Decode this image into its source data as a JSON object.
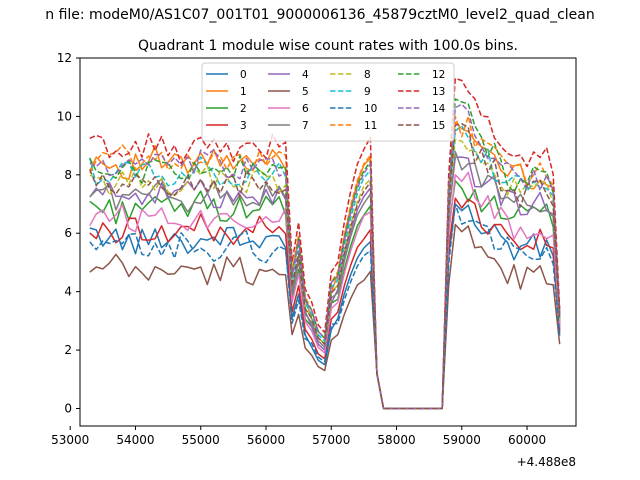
{
  "figure": {
    "suptitle": "n file: modeM0/AS1C07_001T01_9000006136_45879cztM0_level2_quad_clean",
    "title": "Quadrant 1 module wise count rates with 100.0s bins.",
    "x_offset_label": "+4.488e8"
  },
  "chart_data": {
    "type": "line",
    "title": "Quadrant 1 module wise count rates with 100.0s bins.",
    "xlabel": "",
    "ylabel": "",
    "x_offset": 448800000,
    "xlim": [
      53150,
      60750
    ],
    "ylim": [
      -0.6,
      12
    ],
    "xticks": [
      53000,
      54000,
      55000,
      56000,
      57000,
      58000,
      59000,
      60000
    ],
    "yticks": [
      0,
      2,
      4,
      6,
      8,
      10,
      12
    ],
    "grid": false,
    "legend_position": "upper center, 4 columns",
    "x": [
      53300,
      53400,
      53500,
      53600,
      53700,
      53800,
      53900,
      54000,
      54100,
      54200,
      54300,
      54400,
      54500,
      54600,
      54700,
      54800,
      54900,
      55000,
      55100,
      55200,
      55300,
      55400,
      55500,
      55600,
      55700,
      55800,
      55900,
      56000,
      56100,
      56200,
      56300,
      56400,
      56500,
      56600,
      56700,
      56800,
      56900,
      57000,
      57100,
      57200,
      57300,
      57400,
      57500,
      57600,
      57700,
      57800,
      57900,
      58000,
      58100,
      58200,
      58300,
      58400,
      58500,
      58600,
      58700,
      58800,
      58900,
      59000,
      59100,
      59200,
      59300,
      59400,
      59500,
      59600,
      59700,
      59800,
      59900,
      60000,
      60100,
      60200,
      60300,
      60400,
      60500
    ],
    "series": [
      {
        "name": "0",
        "color": "#1f77b4",
        "dash": "solid",
        "base": 5.8,
        "spike": 7.0,
        "dip": 1.5,
        "pre": 5.6,
        "end": 2.6
      },
      {
        "name": "1",
        "color": "#ff7f0e",
        "dash": "solid",
        "base": 8.4,
        "spike": 9.8,
        "dip": 2.2,
        "pre": 8.4,
        "end": 3.0
      },
      {
        "name": "2",
        "color": "#2ca02c",
        "dash": "solid",
        "base": 6.9,
        "spike": 7.8,
        "dip": 2.0,
        "pre": 6.8,
        "end": 2.8
      },
      {
        "name": "3",
        "color": "#d62728",
        "dash": "solid",
        "base": 6.1,
        "spike": 7.2,
        "dip": 1.7,
        "pre": 6.0,
        "end": 2.7
      },
      {
        "name": "4",
        "color": "#9467bd",
        "dash": "solid",
        "base": 7.4,
        "spike": 8.6,
        "dip": 2.0,
        "pre": 7.4,
        "end": 2.9
      },
      {
        "name": "5",
        "color": "#8c564b",
        "dash": "solid",
        "base": 4.7,
        "spike": 6.3,
        "dip": 1.3,
        "pre": 4.6,
        "end": 2.2
      },
      {
        "name": "6",
        "color": "#e377c2",
        "dash": "solid",
        "base": 6.6,
        "spike": 8.0,
        "dip": 1.9,
        "pre": 6.6,
        "end": 2.8
      },
      {
        "name": "7",
        "color": "#7f7f7f",
        "dash": "solid",
        "base": 7.3,
        "spike": 8.8,
        "dip": 2.1,
        "pre": 7.2,
        "end": 3.0
      },
      {
        "name": "8",
        "color": "#bcbd22",
        "dash": "dashed",
        "base": 7.8,
        "spike": 9.2,
        "dip": 2.2,
        "pre": 7.7,
        "end": 3.0
      },
      {
        "name": "9",
        "color": "#17becf",
        "dash": "dashed",
        "base": 8.1,
        "spike": 9.5,
        "dip": 2.3,
        "pre": 8.0,
        "end": 3.1
      },
      {
        "name": "10",
        "color": "#1f77b4",
        "dash": "dashed",
        "base": 5.5,
        "spike": 7.0,
        "dip": 1.6,
        "pre": 5.3,
        "end": 2.5
      },
      {
        "name": "11",
        "color": "#ff7f0e",
        "dash": "dashed",
        "base": 8.5,
        "spike": 10.0,
        "dip": 2.4,
        "pre": 8.5,
        "end": 3.2
      },
      {
        "name": "12",
        "color": "#2ca02c",
        "dash": "dashed",
        "base": 8.2,
        "spike": 10.6,
        "dip": 2.4,
        "pre": 8.3,
        "end": 3.2
      },
      {
        "name": "13",
        "color": "#d62728",
        "dash": "dashed",
        "base": 8.9,
        "spike": 11.3,
        "dip": 2.6,
        "pre": 9.1,
        "end": 3.4
      },
      {
        "name": "14",
        "color": "#9467bd",
        "dash": "dashed",
        "base": 8.3,
        "spike": 10.3,
        "dip": 2.4,
        "pre": 8.2,
        "end": 3.2
      },
      {
        "name": "15",
        "color": "#8c564b",
        "dash": "dashed",
        "base": 7.7,
        "spike": 9.7,
        "dip": 2.2,
        "pre": 7.6,
        "end": 3.1
      }
    ]
  }
}
